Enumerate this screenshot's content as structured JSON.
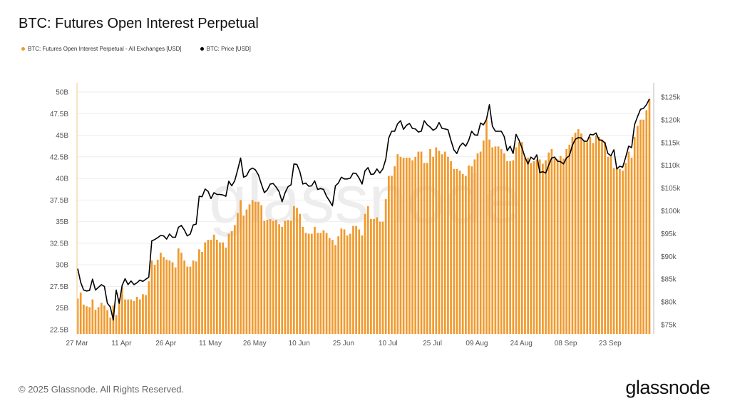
{
  "title": "BTC: Futures Open Interest Perpetual",
  "legend": [
    {
      "label": "BTC: Futures Open Interest Perpetual - All Exchanges [USD]",
      "color": "#F09A2E"
    },
    {
      "label": "BTC: Price [USD]",
      "color": "#000000"
    }
  ],
  "footer": {
    "copyright": "© 2025 Glassnode. All Rights Reserved.",
    "logo": "glassnode"
  },
  "watermark": "glassnode",
  "chart_data": {
    "type": "bar+line",
    "title": "BTC: Futures Open Interest Perpetual",
    "grid": "horizontal",
    "legend_position": "top-left",
    "x_start": "27 Mar",
    "x_ticks": [
      "27 Mar",
      "11 Apr",
      "26 Apr",
      "11 May",
      "26 May",
      "10 Jun",
      "25 Jun",
      "10 Jul",
      "25 Jul",
      "09 Aug",
      "24 Aug",
      "08 Sep",
      "23 Sep"
    ],
    "y_left_ticks": [
      "22.5B",
      "25B",
      "27.5B",
      "30B",
      "32.5B",
      "35B",
      "37.5B",
      "40B",
      "42.5B",
      "45B",
      "47.5B",
      "50B"
    ],
    "y_left_tick_values": [
      22.5,
      25,
      27.5,
      30,
      32.5,
      35,
      37.5,
      40,
      42.5,
      45,
      47.5,
      50
    ],
    "y_right_ticks": [
      "$75k",
      "$80k",
      "$85k",
      "$90k",
      "$95k",
      "$100k",
      "$105k",
      "$110k",
      "$115k",
      "$120k",
      "$125k"
    ],
    "y_right_tick_values": [
      75,
      80,
      85,
      90,
      95,
      100,
      105,
      110,
      115,
      120,
      125
    ],
    "series": [
      {
        "name": "BTC: Futures Open Interest Perpetual - All Exchanges [USD]",
        "type": "bar",
        "unit": "B USD",
        "axis": "left",
        "color": "#F09A2E",
        "values": [
          26.1,
          26.8,
          25.4,
          25.2,
          25.1,
          26.0,
          24.8,
          25.1,
          25.6,
          25.3,
          24.75,
          23.9,
          25.3,
          24.2,
          26.1,
          27.4,
          26.0,
          26.0,
          26.0,
          25.8,
          26.3,
          26.0,
          26.6,
          26.5,
          28.1,
          30.5,
          30.0,
          30.6,
          31.4,
          30.9,
          30.6,
          30.5,
          30.3,
          29.7,
          31.9,
          31.4,
          30.5,
          29.8,
          29.8,
          30.5,
          30.4,
          31.8,
          31.5,
          32.6,
          32.9,
          32.9,
          33.5,
          32.9,
          32.6,
          32.6,
          32.0,
          33.6,
          33.9,
          34.6,
          36.0,
          37.5,
          35.7,
          36.4,
          37.0,
          37.5,
          37.3,
          37.3,
          36.9,
          35.1,
          35.2,
          35.3,
          35.1,
          35.2,
          34.7,
          34.4,
          35.1,
          35.2,
          35.1,
          36.8,
          36.6,
          35.9,
          34.4,
          33.7,
          33.6,
          33.6,
          34.4,
          33.7,
          33.7,
          34.0,
          33.7,
          33.1,
          32.9,
          32.3,
          33.3,
          34.2,
          34.1,
          33.4,
          33.6,
          34.5,
          34.5,
          34.1,
          33.4,
          35.9,
          36.8,
          35.3,
          35.3,
          35.5,
          35.0,
          35.0,
          37.6,
          40.3,
          40.3,
          41.4,
          42.8,
          42.5,
          42.4,
          42.4,
          42.4,
          42.1,
          42.5,
          43.1,
          43.1,
          41.8,
          41.8,
          43.4,
          42.5,
          43.6,
          43.2,
          42.8,
          43.1,
          42.5,
          42.0,
          41.1,
          41.1,
          40.9,
          40.5,
          40.3,
          41.5,
          41.4,
          42.2,
          42.9,
          43.1,
          44.4,
          46.8,
          44.5,
          43.6,
          43.7,
          43.7,
          43.4,
          42.9,
          42.0,
          42.0,
          42.1,
          43.6,
          44.2,
          44.2,
          42.4,
          42.4,
          41.8,
          42.0,
          42.2,
          42.2,
          41.7,
          42.1,
          43.0,
          43.4,
          42.3,
          42.2,
          42.6,
          42.3,
          43.4,
          43.9,
          44.8,
          45.3,
          45.7,
          45.2,
          44.4,
          44.2,
          44.8,
          44.1,
          45.0,
          44.8,
          44.5,
          44.2,
          42.5,
          42.6,
          41.2,
          41.1,
          41.1,
          40.9,
          41.8,
          43.1,
          42.4,
          44.8,
          46.1,
          46.8,
          46.8,
          47.9,
          49.2
        ]
      },
      {
        "name": "BTC: Price [USD]",
        "type": "line",
        "unit": "k USD",
        "axis": "right",
        "color": "#000000",
        "values": [
          87.3,
          84.3,
          82.6,
          82.4,
          82.5,
          85.0,
          82.6,
          83.2,
          83.8,
          83.4,
          79.7,
          78.9,
          76.0,
          82.6,
          79.7,
          83.6,
          85.1,
          83.8,
          84.6,
          83.8,
          84.2,
          84.8,
          84.5,
          85.0,
          85.4,
          93.4,
          93.7,
          94.1,
          94.6,
          94.5,
          93.8,
          94.9,
          94.2,
          94.2,
          96.4,
          96.8,
          95.8,
          94.5,
          94.9,
          96.9,
          97.1,
          103.2,
          103.1,
          104.8,
          104.3,
          102.7,
          104.0,
          103.6,
          103.6,
          103.5,
          103.2,
          106.5,
          105.5,
          106.6,
          109.0,
          111.6,
          107.4,
          107.7,
          109.0,
          109.4,
          109.0,
          107.9,
          105.9,
          104.0,
          104.6,
          105.9,
          106.0,
          105.2,
          104.2,
          102.0,
          104.0,
          105.3,
          105.7,
          110.3,
          110.2,
          108.6,
          105.9,
          106.1,
          105.4,
          105.5,
          106.6,
          104.7,
          104.9,
          104.7,
          103.2,
          102.2,
          101.1,
          105.5,
          106.1,
          107.4,
          107.0,
          107.0,
          107.2,
          108.3,
          108.2,
          107.2,
          105.9,
          108.8,
          109.5,
          108.0,
          108.1,
          109.2,
          108.3,
          109.2,
          111.3,
          116.0,
          117.5,
          117.5,
          119.1,
          119.8,
          117.9,
          118.8,
          119.2,
          118.1,
          118.0,
          117.3,
          117.5,
          119.8,
          118.9,
          118.4,
          117.7,
          118.1,
          119.4,
          118.1,
          118.0,
          117.8,
          115.5,
          113.4,
          112.6,
          114.2,
          114.9,
          114.2,
          115.5,
          117.5,
          116.7,
          116.6,
          119.3,
          118.9,
          120.1,
          123.3,
          118.6,
          117.5,
          117.5,
          117.5,
          116.3,
          113.2,
          114.2,
          112.6,
          116.8,
          115.5,
          113.8,
          111.8,
          110.3,
          111.8,
          111.3,
          112.3,
          108.4,
          108.6,
          108.3,
          110.0,
          111.6,
          111.8,
          110.9,
          110.8,
          110.3,
          111.6,
          112.1,
          114.4,
          115.7,
          116.1,
          116.0,
          115.3,
          115.3,
          116.8,
          116.7,
          117.1,
          115.6,
          115.5,
          114.9,
          112.6,
          112.1,
          113.4,
          109.2,
          109.8,
          109.6,
          111.8,
          114.2,
          113.9,
          118.9,
          120.7,
          122.3,
          122.5,
          123.3,
          124.6
        ]
      }
    ]
  }
}
